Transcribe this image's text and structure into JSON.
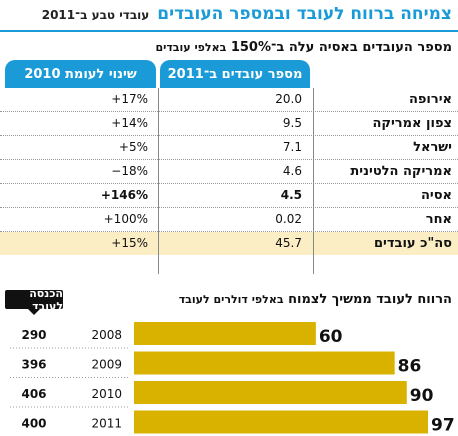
{
  "header": {
    "title": "צמיחה ברווח לעובד ובמספר העובדים",
    "subtitle": "עובדי טבע ב־2011"
  },
  "table": {
    "caption": "מספר העובדים באסיה עלה ב־150%",
    "caption_unit": "באלפי עובדים",
    "col_workers": "מספר עובדים ב־2011",
    "col_change": "שינוי לעומת 2010",
    "rows": [
      {
        "region": "אירופה",
        "workers": "20.0",
        "change": "+17%"
      },
      {
        "region": "צפון אמריקה",
        "workers": "9.5",
        "change": "+14%"
      },
      {
        "region": "ישראל",
        "workers": "7.1",
        "change": "+5%"
      },
      {
        "region": "אמריקה הלטינית",
        "workers": "4.6",
        "change": "−18%"
      },
      {
        "region": "אסיה",
        "workers": "4.5",
        "change": "+146%"
      },
      {
        "region": "אחר",
        "workers": "0.02",
        "change": "+100%"
      },
      {
        "region": "סה\"כ עובדים",
        "workers": "45.7",
        "change": "+15%"
      }
    ]
  },
  "bar_section": {
    "caption": "הרווח לעובד ממשיך לצמוח",
    "caption_unit": "באלפי דולרים לעובד",
    "salary_label": "הכנסה לעובד"
  },
  "colors": {
    "accent": "#1a9bd7",
    "bar": "#d9b200",
    "total_row": "#fbeec5"
  },
  "chart_data": {
    "type": "bar",
    "orientation": "horizontal",
    "categories": [
      "2008",
      "2009",
      "2010",
      "2011"
    ],
    "values": [
      60,
      86,
      90,
      97
    ],
    "revenue_per_employee": [
      290,
      396,
      406,
      400
    ],
    "title": "הרווח לעובד ממשיך לצמוח",
    "xlabel": "באלפי דולרים לעובד",
    "ylabel": "",
    "xlim": [
      0,
      97
    ],
    "grid": false
  }
}
